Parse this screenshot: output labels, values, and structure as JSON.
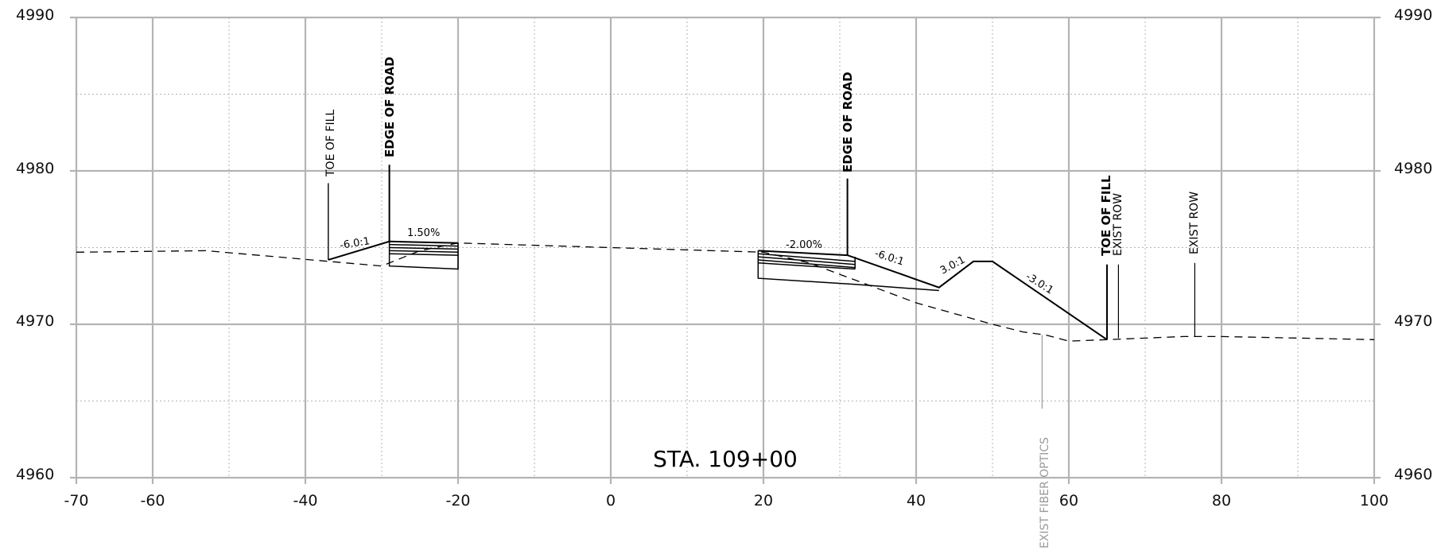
{
  "drawing": {
    "type": "cross-section",
    "station": "STA. 109+00",
    "x_axis": {
      "min": -70,
      "max": 100,
      "major_step": 20,
      "ticks": [
        "-70",
        "-60",
        "-40",
        "-20",
        "0",
        "20",
        "40",
        "60",
        "80",
        "100"
      ],
      "tick_values": [
        -70,
        -60,
        -40,
        -20,
        0,
        20,
        40,
        60,
        80,
        100
      ]
    },
    "y_axis": {
      "min": 4960,
      "max": 4990,
      "major_step": 10,
      "ticks": [
        "4960",
        "4970",
        "4980",
        "4990"
      ],
      "tick_values": [
        4960,
        4970,
        4980,
        4990
      ]
    },
    "grid": {
      "major": true,
      "minor": true,
      "minor_style": "dotted"
    },
    "colors": {
      "grid": "#b4b4b4",
      "line": "#000000",
      "utility": "#9a9a9a"
    }
  },
  "existing_ground": [
    [
      -70,
      4974.7
    ],
    [
      -53,
      4974.8
    ],
    [
      -30,
      4973.8
    ],
    [
      -25,
      4974.8
    ],
    [
      -20,
      4975.3
    ],
    [
      0,
      4975.0
    ],
    [
      20,
      4974.7
    ],
    [
      26,
      4974.0
    ],
    [
      40,
      4971.4
    ],
    [
      50,
      4970.0
    ],
    [
      54,
      4969.5
    ],
    [
      57,
      4969.3
    ],
    [
      60,
      4968.9
    ],
    [
      65,
      4969.0
    ],
    [
      75,
      4969.2
    ],
    [
      80,
      4969.2
    ],
    [
      100,
      4969.0
    ]
  ],
  "proposed": {
    "left_fill": [
      [
        -37,
        4974.2
      ],
      [
        -29,
        4975.4
      ],
      [
        -20,
        4975.3
      ]
    ],
    "right_fill": [
      [
        19.3,
        4974.8
      ],
      [
        31,
        4974.5
      ],
      [
        43,
        4972.4
      ],
      [
        47.5,
        4974.1
      ],
      [
        50,
        4974.1
      ],
      [
        65,
        4969.0
      ]
    ],
    "left_pavement_bottom": [
      [
        -29,
        4973.8
      ],
      [
        -20,
        4973.6
      ]
    ],
    "right_pavement_bottom": [
      [
        19.3,
        4973.0
      ],
      [
        32,
        4972.6
      ],
      [
        43,
        4972.2
      ]
    ],
    "left_layers": [
      [
        4975.2,
        4975.1
      ],
      [
        4975.0,
        4974.9
      ],
      [
        4974.8,
        4974.7
      ],
      [
        4974.6,
        4974.5
      ]
    ],
    "right_layers": [
      [
        4974.6,
        4974.1
      ],
      [
        4974.4,
        4973.9
      ],
      [
        4974.2,
        4973.7
      ],
      [
        4974.0,
        4973.6
      ]
    ]
  },
  "labels": {
    "left_toe": {
      "text": "TOE OF FILL",
      "x": -37
    },
    "left_edge": {
      "text": "EDGE OF ROAD",
      "x": -29
    },
    "right_edge": {
      "text": "EDGE OF ROAD",
      "x": 31
    },
    "right_toe": {
      "text": "TOE OF FILL",
      "x": 65
    },
    "exist_row_1": {
      "text": "EXIST ROW",
      "x": 66.5
    },
    "exist_row_2": {
      "text": "EXIST ROW",
      "x": 76.5
    },
    "fiber": {
      "text": "EXIST FIBER OPTICS",
      "x": 56.5
    }
  },
  "slopes": {
    "s1": {
      "text": "-6.0:1"
    },
    "s2": {
      "text": "1.50%"
    },
    "s3": {
      "text": "-2.00%"
    },
    "s4": {
      "text": "-6.0:1"
    },
    "s5": {
      "text": "3.0:1"
    },
    "s6": {
      "text": "-3.0:1"
    }
  }
}
